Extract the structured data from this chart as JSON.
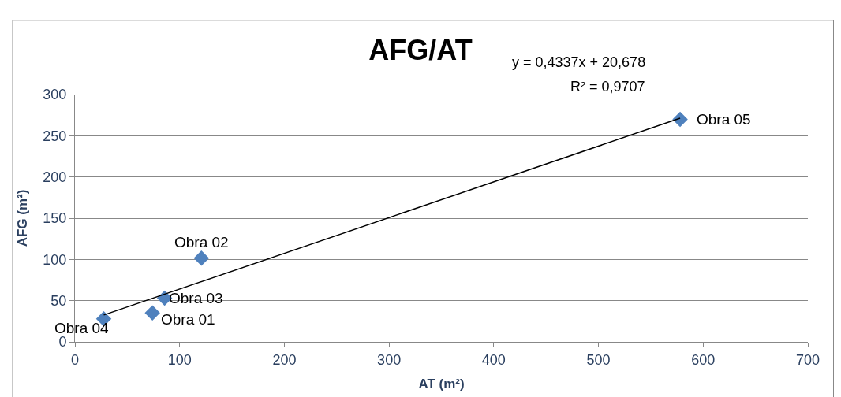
{
  "chart_data": {
    "type": "scatter",
    "title": "AFG/AT",
    "xlabel": "AT (m²)",
    "ylabel": "AFG (m²)",
    "x": [
      74,
      120.8,
      85.6,
      27.5,
      578
    ],
    "series": [
      {
        "color": "#4f81bd",
        "values": [
          35,
          101.5,
          53,
          28,
          270
        ],
        "marker": "diamond"
      },
      {
        "type": "line",
        "color": "#000000",
        "x": [
          27.5,
          578
        ],
        "values": [
          32.6,
          271.3
        ],
        "marker": "none"
      }
    ],
    "annotations": [
      {
        "text": "Obra 01",
        "x": 74,
        "y": 35
      },
      {
        "text": "Obra 02",
        "x": 120.8,
        "y": 101.5
      },
      {
        "text": "Obra 03",
        "x": 85.6,
        "y": 53
      },
      {
        "text": "Obra 04",
        "x": 27.5,
        "y": 28
      },
      {
        "text": "Obra 05",
        "x": 578,
        "y": 270
      },
      "y = 0,4337x + 20,678",
      "R² = 0,9707"
    ],
    "xlim": [
      0,
      700
    ],
    "xticks": [
      0,
      100,
      200,
      300,
      400,
      500,
      600,
      700
    ],
    "ylim": [
      0,
      300
    ],
    "yticks": [
      0,
      50,
      100,
      150,
      200,
      250,
      300
    ],
    "grid": "y",
    "legend": false
  }
}
